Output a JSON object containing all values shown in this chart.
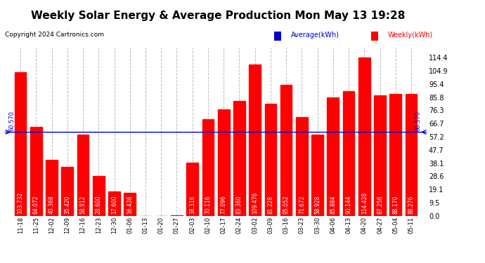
{
  "title": "Weekly Solar Energy & Average Production Mon May 13 19:28",
  "copyright": "Copyright 2024 Cartronics.com",
  "legend_avg": "Average(kWh)",
  "legend_weekly": "Weekly(kWh)",
  "average_line": 60.57,
  "categories": [
    "11-18",
    "11-25",
    "12-02",
    "12-09",
    "12-16",
    "12-23",
    "12-30",
    "01-06",
    "01-13",
    "01-20",
    "01-27",
    "02-03",
    "02-10",
    "02-17",
    "02-24",
    "03-02",
    "03-09",
    "03-16",
    "03-23",
    "03-30",
    "04-06",
    "04-13",
    "04-20",
    "04-27",
    "05-04",
    "05-11"
  ],
  "values": [
    103.732,
    64.072,
    40.368,
    35.42,
    58.912,
    28.6,
    17.6,
    16.436,
    0.0,
    0.0,
    0.148,
    38.316,
    70.116,
    77.096,
    83.36,
    109.476,
    81.228,
    95.052,
    71.672,
    58.928,
    85.884,
    90.144,
    114.428,
    87.256,
    88.17,
    88.276
  ],
  "bar_color": "#FF0000",
  "avg_line_color": "#0000CC",
  "title_fontsize": 11,
  "copyright_fontsize": 6.5,
  "ylabel_right": [
    "0.0",
    "9.5",
    "19.1",
    "28.6",
    "38.1",
    "47.7",
    "57.2",
    "66.7",
    "76.3",
    "85.8",
    "95.4",
    "104.9",
    "114.4"
  ],
  "yticks_right": [
    0.0,
    9.5,
    19.1,
    28.6,
    38.1,
    47.7,
    57.2,
    66.7,
    76.3,
    85.8,
    95.4,
    104.9,
    114.4
  ],
  "grid_color": "#BBBBBB",
  "background_color": "#FFFFFF",
  "bar_width": 0.75,
  "value_label_fontsize": 5.5,
  "avg_line_value_label": "60.570"
}
